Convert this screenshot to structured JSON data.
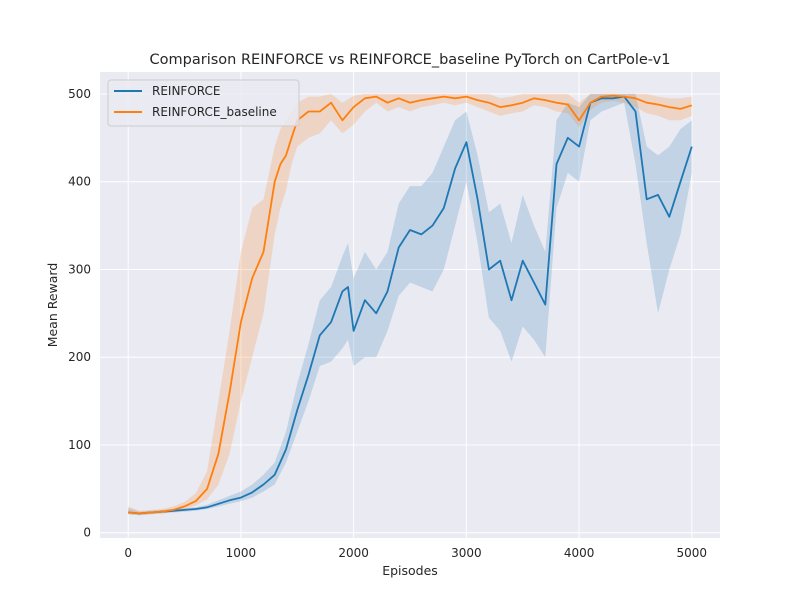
{
  "chart_data": {
    "type": "line",
    "title": "Comparison REINFORCE vs REINFORCE_baseline PyTorch on CartPole-v1",
    "xlabel": "Episodes",
    "ylabel": "Mean Reward",
    "xlim": [
      -250,
      5250
    ],
    "ylim": [
      -6,
      525
    ],
    "x_ticks": [
      0,
      1000,
      2000,
      3000,
      4000,
      5000
    ],
    "y_ticks": [
      0,
      100,
      200,
      300,
      400,
      500
    ],
    "grid": true,
    "legend_position": "upper-left",
    "background": "#eaeaf2",
    "series": [
      {
        "name": "REINFORCE",
        "color": "#1f77b4",
        "band_color": "#1f77b4",
        "x": [
          0,
          100,
          200,
          300,
          400,
          500,
          600,
          700,
          800,
          900,
          1000,
          1100,
          1200,
          1300,
          1400,
          1500,
          1600,
          1700,
          1800,
          1900,
          1950,
          2000,
          2100,
          2200,
          2300,
          2400,
          2500,
          2600,
          2700,
          2800,
          2900,
          3000,
          3100,
          3200,
          3300,
          3400,
          3500,
          3600,
          3700,
          3800,
          3900,
          4000,
          4100,
          4200,
          4300,
          4400,
          4500,
          4600,
          4700,
          4800,
          4900,
          5000
        ],
        "y": [
          23,
          22,
          23,
          24,
          25,
          26,
          27,
          29,
          33,
          37,
          40,
          46,
          55,
          66,
          95,
          140,
          180,
          225,
          240,
          275,
          280,
          230,
          265,
          250,
          275,
          325,
          345,
          340,
          350,
          370,
          415,
          445,
          380,
          300,
          310,
          265,
          310,
          285,
          260,
          420,
          450,
          440,
          490,
          495,
          495,
          497,
          480,
          380,
          385,
          360,
          400,
          440
        ],
        "lower": [
          21,
          20,
          21,
          22,
          23,
          24,
          25,
          27,
          30,
          33,
          36,
          40,
          47,
          55,
          80,
          115,
          150,
          190,
          195,
          210,
          220,
          190,
          200,
          200,
          230,
          270,
          285,
          280,
          275,
          300,
          350,
          400,
          330,
          245,
          230,
          195,
          235,
          220,
          200,
          370,
          410,
          400,
          470,
          480,
          485,
          490,
          420,
          330,
          250,
          300,
          340,
          410
        ],
        "upper": [
          28,
          24,
          25,
          26,
          27,
          28,
          29,
          32,
          37,
          42,
          47,
          55,
          66,
          80,
          115,
          170,
          215,
          265,
          280,
          315,
          330,
          290,
          320,
          300,
          320,
          375,
          395,
          395,
          410,
          440,
          470,
          480,
          430,
          365,
          375,
          330,
          385,
          350,
          320,
          470,
          490,
          485,
          500,
          500,
          500,
          500,
          500,
          440,
          430,
          440,
          460,
          470
        ]
      },
      {
        "name": "REINFORCE_baseline",
        "color": "#ff7f0e",
        "band_color": "#ff7f0e",
        "x": [
          0,
          100,
          200,
          300,
          400,
          500,
          600,
          700,
          800,
          900,
          1000,
          1100,
          1200,
          1300,
          1350,
          1400,
          1450,
          1500,
          1600,
          1700,
          1800,
          1900,
          2000,
          2100,
          2200,
          2300,
          2400,
          2500,
          2600,
          2700,
          2800,
          2900,
          3000,
          3100,
          3200,
          3300,
          3400,
          3500,
          3600,
          3700,
          3800,
          3900,
          4000,
          4100,
          4200,
          4300,
          4400,
          4500,
          4600,
          4700,
          4800,
          4900,
          5000
        ],
        "y": [
          23,
          22,
          23,
          24,
          26,
          30,
          36,
          50,
          90,
          160,
          240,
          290,
          320,
          400,
          420,
          430,
          450,
          470,
          480,
          480,
          490,
          470,
          485,
          495,
          497,
          490,
          495,
          490,
          493,
          495,
          497,
          495,
          497,
          493,
          490,
          485,
          487,
          490,
          495,
          493,
          490,
          488,
          470,
          490,
          497,
          498,
          497,
          495,
          490,
          488,
          485,
          483,
          487
        ],
        "lower": [
          21,
          20,
          21,
          22,
          24,
          27,
          31,
          38,
          55,
          90,
          150,
          200,
          250,
          340,
          370,
          390,
          420,
          440,
          450,
          455,
          470,
          455,
          465,
          480,
          490,
          480,
          485,
          480,
          485,
          487,
          490,
          487,
          490,
          485,
          480,
          475,
          478,
          480,
          487,
          485,
          480,
          478,
          462,
          482,
          490,
          492,
          490,
          485,
          478,
          475,
          470,
          470,
          475
        ],
        "upper": [
          30,
          25,
          26,
          27,
          30,
          35,
          45,
          70,
          150,
          230,
          320,
          370,
          380,
          440,
          460,
          470,
          480,
          490,
          497,
          497,
          500,
          490,
          498,
          500,
          500,
          500,
          500,
          500,
          500,
          500,
          500,
          500,
          500,
          500,
          500,
          495,
          497,
          500,
          500,
          500,
          500,
          500,
          490,
          500,
          500,
          500,
          500,
          500,
          500,
          497,
          495,
          495,
          497
        ]
      }
    ]
  }
}
